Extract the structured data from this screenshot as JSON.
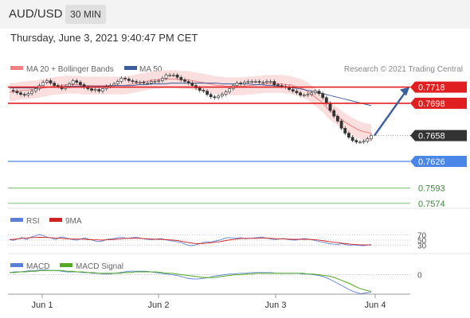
{
  "header": {
    "pair": "AUD/USD",
    "timeframe": "30 MIN"
  },
  "date_line": "Thursday, June 3, 2021 9:40:47 PM CET",
  "colors": {
    "bb_fill": "#f9d3d3",
    "ma20": "#f08080",
    "ma50": "#3b5f9e",
    "resistance": "#e02020",
    "support": "#4a86e8",
    "support_green": "#66bb66",
    "price": "#333333",
    "arrow": "#3b5f9e",
    "rsi": "#5b7fd6",
    "rsi_ma": "#d02020",
    "macd": "#5b7fd6",
    "macd_signal": "#55aa22"
  },
  "chart_data": [
    {
      "type": "line",
      "title": "",
      "legend": [
        {
          "name": "MA 20 + Bollinger Bands",
          "color": "#f08080"
        },
        {
          "name": "MA 50",
          "color": "#3b5f9e"
        }
      ],
      "copyright": "Research © 2021 Trading Central",
      "x_ticks": [
        "Jun 1",
        "Jun 2",
        "Jun 3",
        "Jun 4"
      ],
      "ylim": [
        0.7565,
        0.7755
      ],
      "price_series": [
        0.7714,
        0.7713,
        0.7711,
        0.7709,
        0.7708,
        0.771,
        0.7713,
        0.7716,
        0.772,
        0.7724,
        0.7726,
        0.7723,
        0.772,
        0.7719,
        0.7716,
        0.7719,
        0.7722,
        0.7726,
        0.7724,
        0.7721,
        0.7718,
        0.7716,
        0.7714,
        0.7715,
        0.7713,
        0.7716,
        0.7719,
        0.772,
        0.7722,
        0.7725,
        0.7729,
        0.7728,
        0.7726,
        0.7725,
        0.7724,
        0.7724,
        0.7723,
        0.7723,
        0.7725,
        0.7725,
        0.7726,
        0.7729,
        0.7733,
        0.7733,
        0.7733,
        0.773,
        0.7727,
        0.7725,
        0.7723,
        0.772,
        0.7717,
        0.7714,
        0.7713,
        0.7709,
        0.7706,
        0.7705,
        0.7707,
        0.7709,
        0.7712,
        0.7716,
        0.772,
        0.7723,
        0.7722,
        0.7724,
        0.7725,
        0.7725,
        0.7725,
        0.7724,
        0.7724,
        0.7725,
        0.7725,
        0.7721,
        0.772,
        0.7719,
        0.7718,
        0.7715,
        0.7713,
        0.7711,
        0.7708,
        0.7708,
        0.7709,
        0.7711,
        0.7713,
        0.771,
        0.7705,
        0.7698,
        0.7689,
        0.7682,
        0.7676,
        0.7667,
        0.7661,
        0.7656,
        0.7652,
        0.765,
        0.765,
        0.7651,
        0.7654,
        0.7658
      ],
      "ma20_series": [
        0.7712,
        0.7712,
        0.7713,
        0.7714,
        0.7714,
        0.7715,
        0.7715,
        0.7716,
        0.7717,
        0.7718,
        0.7719,
        0.772,
        0.772,
        0.7721,
        0.7721,
        0.7721,
        0.7721,
        0.772,
        0.772,
        0.772,
        0.772,
        0.772,
        0.772,
        0.772,
        0.772,
        0.772,
        0.772,
        0.772,
        0.7721,
        0.7722,
        0.7723,
        0.7724,
        0.7725,
        0.7726,
        0.7727,
        0.7727,
        0.7728,
        0.7728,
        0.7728,
        0.7728,
        0.7727,
        0.7727,
        0.7727,
        0.7726,
        0.7725,
        0.7724,
        0.7723,
        0.7722,
        0.7721,
        0.772,
        0.772,
        0.7719,
        0.7719,
        0.7719,
        0.7719,
        0.7719,
        0.772,
        0.772,
        0.7721,
        0.7721,
        0.7722,
        0.7722,
        0.7722,
        0.7722,
        0.7722,
        0.7721,
        0.7721,
        0.7719,
        0.7718,
        0.7716,
        0.7713,
        0.7709,
        0.7705,
        0.7701,
        0.7696,
        0.769,
        0.7686,
        0.7682,
        0.7678,
        0.7674,
        0.7671,
        0.7668,
        0.7665,
        0.7663,
        0.7662,
        0.7661
      ],
      "ma50_series": [
        0.7717,
        0.7717,
        0.7717,
        0.7717,
        0.7717,
        0.7718,
        0.7718,
        0.7718,
        0.7718,
        0.7719,
        0.7719,
        0.7719,
        0.7719,
        0.7719,
        0.7719,
        0.7719,
        0.772,
        0.772,
        0.772,
        0.772,
        0.7721,
        0.7721,
        0.7722,
        0.7722,
        0.7722,
        0.7723,
        0.7723,
        0.7723,
        0.7723,
        0.7723,
        0.7723,
        0.7723,
        0.7723,
        0.7722,
        0.7722,
        0.7722,
        0.7722,
        0.7722,
        0.7721,
        0.7721,
        0.772,
        0.772,
        0.7719,
        0.7718,
        0.7717,
        0.7716,
        0.7714,
        0.7713,
        0.7711,
        0.7709,
        0.7707,
        0.7705,
        0.7703,
        0.7701,
        0.7699,
        0.7697,
        0.7695
      ],
      "levels": [
        {
          "value": "0.7718",
          "kind": "resistance"
        },
        {
          "value": "0.7698",
          "kind": "resistance"
        },
        {
          "value": "0.7658",
          "kind": "last"
        },
        {
          "value": "0.7626",
          "kind": "support"
        },
        {
          "value": "0.7593",
          "kind": "support_green"
        },
        {
          "value": "0.7574",
          "kind": "support_green"
        }
      ],
      "arrow_target": 0.7718
    },
    {
      "type": "line",
      "legend": [
        {
          "name": "RSI",
          "color": "#5b7fd6"
        },
        {
          "name": "9MA",
          "color": "#d02020"
        }
      ],
      "y_ticks": [
        "70",
        "50",
        "30"
      ],
      "ylim": [
        0,
        100
      ],
      "rsi_series": [
        52,
        49,
        55,
        60,
        52,
        61,
        66,
        72,
        68,
        61,
        58,
        52,
        62,
        60,
        56,
        52,
        50,
        55,
        58,
        53,
        48,
        44,
        46,
        52,
        55,
        56,
        60,
        60,
        56,
        59,
        61,
        58,
        55,
        53,
        52,
        54,
        56,
        52,
        48,
        46,
        43,
        40,
        32,
        28,
        30,
        35,
        40,
        43,
        42,
        47,
        50,
        56,
        60,
        58,
        57,
        60,
        55,
        57,
        58,
        60,
        62,
        58,
        55,
        52,
        54,
        56,
        53,
        51,
        50,
        53,
        56,
        54,
        51,
        47,
        43,
        40,
        36,
        34,
        33,
        36,
        32,
        30,
        31,
        29,
        28,
        30,
        33
      ],
      "rsi_ma_series": [
        52,
        53,
        55,
        57,
        58,
        60,
        60,
        61,
        61,
        60,
        59,
        58,
        57,
        56,
        55,
        54,
        54,
        54,
        53,
        52,
        51,
        51,
        50,
        51,
        52,
        53,
        54,
        56,
        57,
        57,
        57,
        57,
        56,
        55,
        54,
        53,
        53,
        52,
        51,
        50,
        48,
        45,
        42,
        39,
        37,
        36,
        37,
        38,
        40,
        42,
        44,
        47,
        50,
        52,
        54,
        56,
        57,
        57,
        57,
        57,
        58,
        58,
        57,
        56,
        55,
        55,
        54,
        53,
        53,
        53,
        53,
        53,
        52,
        51,
        49,
        47,
        44,
        42,
        40,
        38,
        36,
        34,
        33,
        32,
        31,
        31,
        31
      ]
    },
    {
      "type": "line",
      "legend": [
        {
          "name": "MACD",
          "color": "#5b7fd6"
        },
        {
          "name": "MACD Signal",
          "color": "#55aa22"
        }
      ],
      "y_ticks": [
        "0"
      ],
      "ylim": [
        -0.003,
        0.0012
      ],
      "macd_series": [
        0.0003,
        0.0004,
        0.0004,
        0.0005,
        0.0006,
        0.0006,
        0.0007,
        0.0007,
        0.0006,
        0.0006,
        0.0005,
        0.0004,
        0.0004,
        0.0004,
        0.0003,
        0.0003,
        0.0002,
        0.0002,
        0.0001,
        0.0001,
        0.0002,
        0.0003,
        0.0004,
        0.0005,
        0.0005,
        0.0005,
        0.0005,
        0.0004,
        0.0003,
        0.0002,
        0.0001,
        0,
        -0.0001,
        -0.0003,
        -0.0005,
        -0.0006,
        -0.0006,
        -0.0005,
        -0.0004,
        -0.0002,
        -0.0001,
        0,
        0.0001,
        0.0001,
        0.0002,
        0.0002,
        0.0003,
        0.0003,
        0.0003,
        0.0003,
        0.0003,
        0.0002,
        0.0002,
        0.0002,
        0.0002,
        0.0002,
        0.0001,
        0.0001,
        0,
        -0.0001,
        -0.0003,
        -0.0006,
        -0.001,
        -0.0014,
        -0.0018,
        -0.0022,
        -0.0025,
        -0.0027,
        -0.0026,
        -0.0025
      ],
      "signal_series": [
        0.0003,
        0.0003,
        0.0004,
        0.0004,
        0.0005,
        0.0005,
        0.0006,
        0.0006,
        0.0006,
        0.0006,
        0.0006,
        0.0005,
        0.0005,
        0.0004,
        0.0004,
        0.0003,
        0.0003,
        0.0002,
        0.0002,
        0.0002,
        0.0002,
        0.0002,
        0.0003,
        0.0003,
        0.0004,
        0.0004,
        0.0004,
        0.0004,
        0.0004,
        0.0003,
        0.0002,
        0.0002,
        0.0001,
        0,
        -0.0001,
        -0.0002,
        -0.0003,
        -0.0004,
        -0.0004,
        -0.0004,
        -0.0003,
        -0.0002,
        -0.0001,
        0,
        0,
        0.0001,
        0.0001,
        0.0002,
        0.0002,
        0.0002,
        0.0002,
        0.0002,
        0.0002,
        0.0002,
        0.0002,
        0.0002,
        0.0002,
        0.0001,
        0.0001,
        0,
        -0.0001,
        -0.0002,
        -0.0004,
        -0.0007,
        -0.001,
        -0.0013,
        -0.0017,
        -0.002,
        -0.0022,
        -0.0024
      ]
    }
  ]
}
